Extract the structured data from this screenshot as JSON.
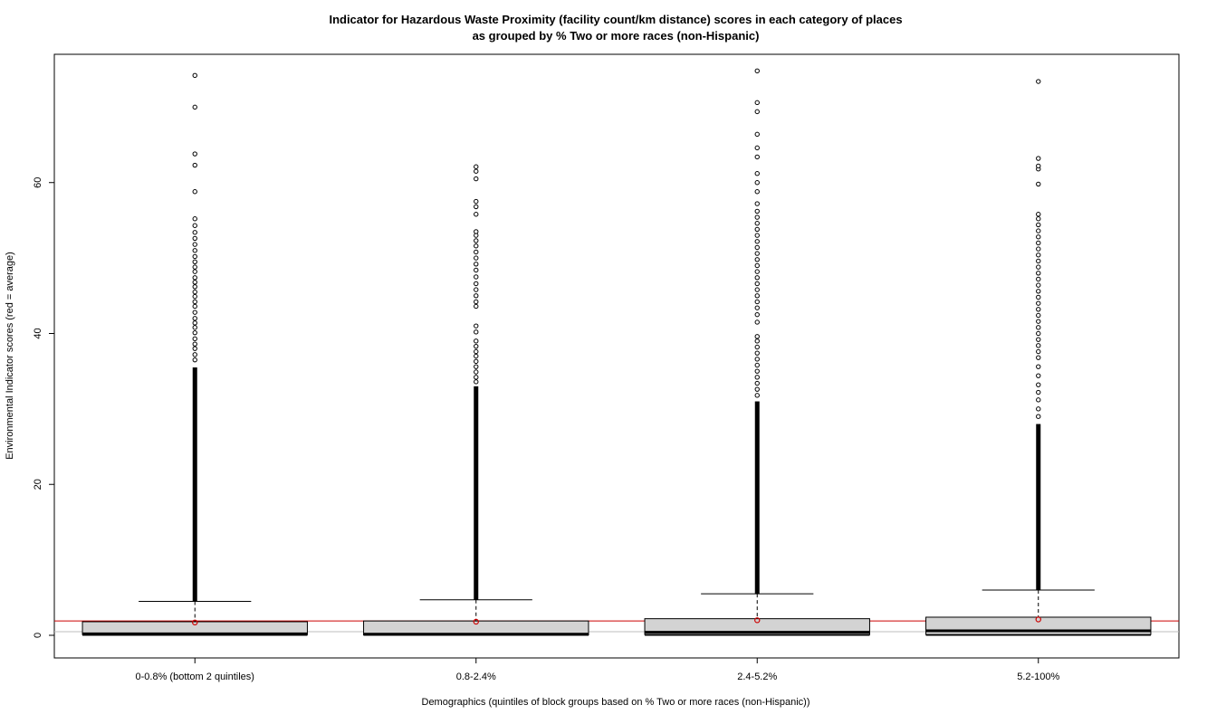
{
  "chart_data": {
    "type": "box",
    "title": "Indicator for Hazardous Waste Proximity (facility count/km distance) scores in each category of places",
    "subtitle": "as grouped by % Two or more races (non-Hispanic)",
    "xlabel": "Demographics (quintiles of block groups based on % Two or more races (non-Hispanic))",
    "ylabel": "Environmental Indicator scores (red = average)",
    "ylim": [
      -3,
      77
    ],
    "yticks": [
      0,
      20,
      40,
      60
    ],
    "overall_mean": 1.9,
    "overall_mean_color": "#cc0000",
    "box_fill": "#d3d3d3",
    "categories": [
      "0-0.8% (bottom 2 quintiles)",
      "0.8-2.4%",
      "2.4-5.2%",
      "5.2-100%"
    ],
    "boxes": [
      {
        "min": 0,
        "q1": 0.1,
        "median": 0.2,
        "q3": 1.8,
        "whisker_high": 4.5,
        "mean": 1.7,
        "dense_outliers_to": 35.5,
        "outliers": [
          36.5,
          37.2,
          38,
          38.6,
          39.3,
          40.1,
          40.8,
          41.4,
          42,
          42.8,
          43.6,
          44.2,
          44.9,
          45.5,
          46.2,
          46.8,
          47.4,
          48.2,
          48.8,
          49.5,
          50.2,
          51,
          51.8,
          52.6,
          53.4,
          54.3,
          55.2,
          58.8,
          62.3,
          63.8,
          70,
          74.2
        ]
      },
      {
        "min": 0,
        "q1": 0.05,
        "median": 0.15,
        "q3": 1.9,
        "whisker_high": 4.7,
        "mean": 1.8,
        "dense_outliers_to": 33,
        "outliers": [
          33.6,
          34.2,
          34.9,
          35.6,
          36.3,
          37,
          37.6,
          38.3,
          39,
          40.2,
          41,
          43.6,
          44.2,
          45,
          45.8,
          46.6,
          47.5,
          48.4,
          49.2,
          50,
          50.8,
          51.6,
          52.3,
          53,
          53.5,
          55.8,
          56.8,
          57.5,
          60.5,
          61.5,
          62.1
        ]
      },
      {
        "min": 0,
        "q1": 0.1,
        "median": 0.4,
        "q3": 2.2,
        "whisker_high": 5.5,
        "mean": 2.0,
        "dense_outliers_to": 31,
        "outliers": [
          31.8,
          32.6,
          33.4,
          34.2,
          35,
          35.8,
          36.6,
          37.4,
          38.2,
          39,
          39.6,
          41.5,
          42.5,
          43.4,
          44.2,
          45,
          45.8,
          46.6,
          47.4,
          48.2,
          49,
          49.8,
          50.6,
          51.4,
          52.2,
          53,
          53.8,
          54.6,
          55.4,
          56.2,
          57.2,
          58.8,
          60,
          61.2,
          63.4,
          64.6,
          66.4,
          69.4,
          70.6,
          74.8
        ]
      },
      {
        "min": 0,
        "q1": 0.1,
        "median": 0.6,
        "q3": 2.4,
        "whisker_high": 6.0,
        "mean": 2.1,
        "dense_outliers_to": 28,
        "outliers": [
          29,
          30,
          31.2,
          32.2,
          33.2,
          34.4,
          35.6,
          36.8,
          37.6,
          38.4,
          39.2,
          40,
          40.8,
          41.6,
          42.4,
          43.2,
          44,
          44.8,
          45.6,
          46.4,
          47.2,
          48,
          48.8,
          49.6,
          50.4,
          51.2,
          52,
          52.8,
          53.6,
          54.4,
          55.2,
          55.8,
          59.8,
          61.8,
          62.2,
          63.2,
          73.4
        ]
      }
    ]
  }
}
